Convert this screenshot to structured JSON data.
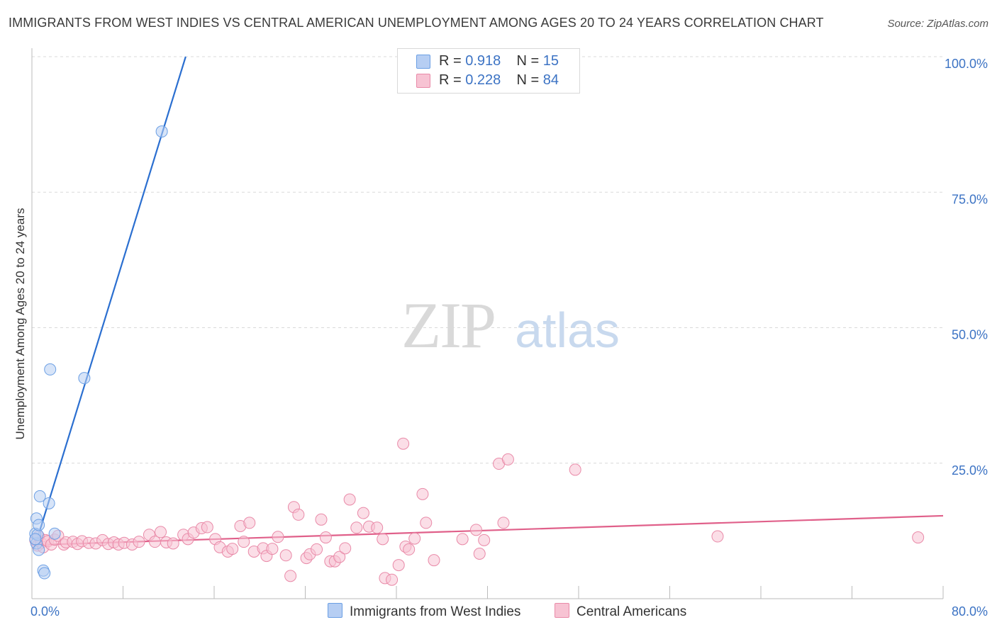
{
  "chart_data": {
    "type": "scatter",
    "title": "IMMIGRANTS FROM WEST INDIES VS CENTRAL AMERICAN UNEMPLOYMENT AMONG AGES 20 TO 24 YEARS CORRELATION CHART",
    "source": "Source: ZipAtlas.com",
    "ylabel": "Unemployment Among Ages 20 to 24 years",
    "xlabel": "",
    "xlim": [
      0,
      80
    ],
    "ylim": [
      0,
      100
    ],
    "x_tick_labels": [
      "0.0%",
      "80.0%"
    ],
    "y_tick_labels": [
      "25.0%",
      "50.0%",
      "75.0%",
      "100.0%"
    ],
    "watermark": "ZIPatlas",
    "legend": [
      {
        "r_label": "R =",
        "r_value": "0.918",
        "n_label": "N =",
        "n_value": "15"
      },
      {
        "r_label": "R =",
        "r_value": "0.228",
        "n_label": "N =",
        "n_value": "84"
      }
    ],
    "series": [
      {
        "name": "Immigrants from West Indies",
        "color": "#6b9fe4",
        "fill": "#b6cef3",
        "trendline": {
          "x": [
            0.2,
            13.5
          ],
          "y": [
            9.2,
            100.0
          ],
          "color": "#2b6fd0"
        },
        "points": [
          [
            0.3,
            12.0
          ],
          [
            0.4,
            10.2
          ],
          [
            0.4,
            14.8
          ],
          [
            0.5,
            11.8
          ],
          [
            0.6,
            13.6
          ],
          [
            0.6,
            9.0
          ],
          [
            0.7,
            18.9
          ],
          [
            1.0,
            5.2
          ],
          [
            1.1,
            4.7
          ],
          [
            1.5,
            17.6
          ],
          [
            1.6,
            42.3
          ],
          [
            2.0,
            12.0
          ],
          [
            4.6,
            40.7
          ],
          [
            11.4,
            86.2
          ],
          [
            0.3,
            11.0
          ]
        ]
      },
      {
        "name": "Central Americans",
        "color": "#e98aa8",
        "fill": "#f7c3d3",
        "trendline": {
          "x": [
            0.0,
            80.0
          ],
          "y": [
            9.9,
            15.3
          ],
          "color": "#e0608a"
        },
        "points": [
          [
            0.3,
            10.8
          ],
          [
            0.5,
            9.8
          ],
          [
            0.6,
            11.5
          ],
          [
            0.8,
            10.3
          ],
          [
            1.0,
            9.5
          ],
          [
            1.2,
            10.8
          ],
          [
            1.4,
            10.6
          ],
          [
            1.7,
            10.0
          ],
          [
            2.0,
            10.9
          ],
          [
            2.3,
            11.6
          ],
          [
            2.8,
            10.0
          ],
          [
            3.0,
            10.4
          ],
          [
            3.6,
            10.5
          ],
          [
            4.0,
            10.1
          ],
          [
            4.4,
            10.6
          ],
          [
            5.0,
            10.3
          ],
          [
            5.6,
            10.2
          ],
          [
            6.2,
            10.8
          ],
          [
            6.7,
            10.1
          ],
          [
            7.2,
            10.4
          ],
          [
            7.6,
            10.0
          ],
          [
            8.1,
            10.3
          ],
          [
            8.8,
            10.0
          ],
          [
            9.4,
            10.5
          ],
          [
            10.3,
            11.8
          ],
          [
            10.8,
            10.5
          ],
          [
            11.3,
            12.3
          ],
          [
            11.8,
            10.4
          ],
          [
            12.4,
            10.2
          ],
          [
            13.3,
            11.8
          ],
          [
            13.7,
            11.0
          ],
          [
            14.2,
            12.2
          ],
          [
            14.9,
            13.0
          ],
          [
            15.4,
            13.2
          ],
          [
            16.1,
            11.0
          ],
          [
            16.5,
            9.5
          ],
          [
            17.2,
            8.7
          ],
          [
            17.6,
            9.2
          ],
          [
            18.3,
            13.4
          ],
          [
            18.6,
            10.5
          ],
          [
            19.1,
            14.0
          ],
          [
            19.5,
            8.7
          ],
          [
            20.3,
            9.3
          ],
          [
            20.6,
            7.9
          ],
          [
            21.1,
            9.2
          ],
          [
            21.6,
            11.4
          ],
          [
            22.3,
            8.0
          ],
          [
            22.7,
            4.2
          ],
          [
            23.0,
            16.9
          ],
          [
            23.4,
            15.5
          ],
          [
            24.1,
            7.5
          ],
          [
            24.4,
            8.2
          ],
          [
            25.0,
            9.1
          ],
          [
            25.4,
            14.6
          ],
          [
            25.8,
            11.3
          ],
          [
            26.2,
            6.9
          ],
          [
            26.6,
            6.9
          ],
          [
            27.0,
            7.7
          ],
          [
            27.5,
            9.3
          ],
          [
            27.9,
            18.3
          ],
          [
            28.5,
            13.1
          ],
          [
            29.1,
            15.8
          ],
          [
            29.6,
            13.3
          ],
          [
            30.3,
            13.1
          ],
          [
            30.8,
            11.0
          ],
          [
            31.0,
            3.8
          ],
          [
            31.6,
            3.5
          ],
          [
            32.2,
            6.2
          ],
          [
            32.8,
            9.6
          ],
          [
            33.1,
            9.1
          ],
          [
            32.6,
            28.6
          ],
          [
            33.6,
            11.1
          ],
          [
            34.3,
            19.3
          ],
          [
            34.6,
            14.0
          ],
          [
            35.3,
            7.1
          ],
          [
            37.8,
            11.0
          ],
          [
            39.0,
            12.7
          ],
          [
            39.3,
            8.3
          ],
          [
            39.7,
            10.8
          ],
          [
            41.0,
            24.9
          ],
          [
            41.4,
            14.0
          ],
          [
            41.8,
            25.7
          ],
          [
            47.7,
            23.8
          ],
          [
            60.2,
            11.5
          ],
          [
            77.8,
            11.3
          ]
        ]
      }
    ]
  }
}
